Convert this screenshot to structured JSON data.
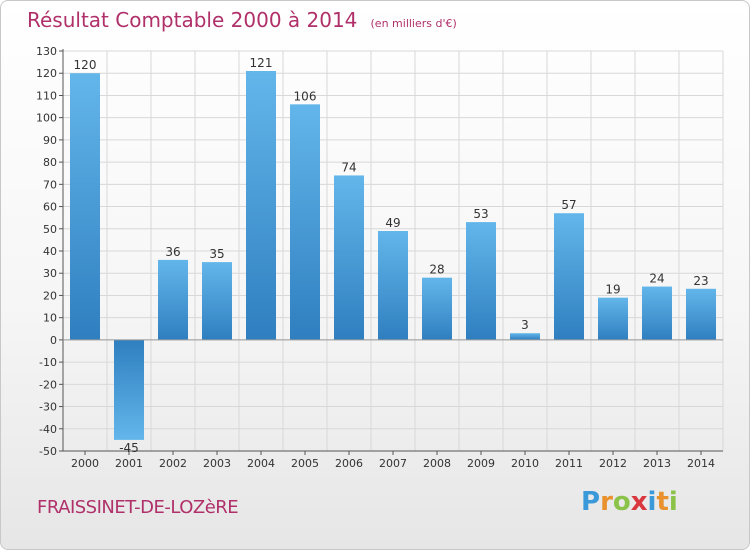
{
  "title": "Résultat Comptable 2000 à 2014",
  "subtitle": "(en milliers d'€)",
  "place": "FRAISSINET-DE-LOZèRE",
  "logo": {
    "letters": [
      "P",
      "r",
      "o",
      "x",
      "i",
      "t",
      "i"
    ],
    "colors": [
      "#3a9ad9",
      "#e8912d",
      "#8bc34a",
      "#d9363e",
      "#3a9ad9",
      "#e8912d",
      "#8bc34a"
    ]
  },
  "colors": {
    "bar_light": "#63b6ea",
    "bar_dark": "#2f7fc0",
    "title": "#b0306a",
    "grid": "#d8d8d8",
    "axis": "#555555",
    "text": "#333333"
  },
  "chart_data": {
    "type": "bar",
    "categories": [
      "2000",
      "2001",
      "2002",
      "2003",
      "2004",
      "2005",
      "2006",
      "2007",
      "2008",
      "2009",
      "2010",
      "2011",
      "2012",
      "2013",
      "2014"
    ],
    "values": [
      120,
      -45,
      36,
      35,
      121,
      106,
      74,
      49,
      28,
      53,
      3,
      57,
      19,
      24,
      23
    ],
    "ylim": [
      -50,
      130
    ],
    "ytick_step": 10,
    "grid": true,
    "data_labels": true,
    "xlabel": "",
    "ylabel": ""
  }
}
